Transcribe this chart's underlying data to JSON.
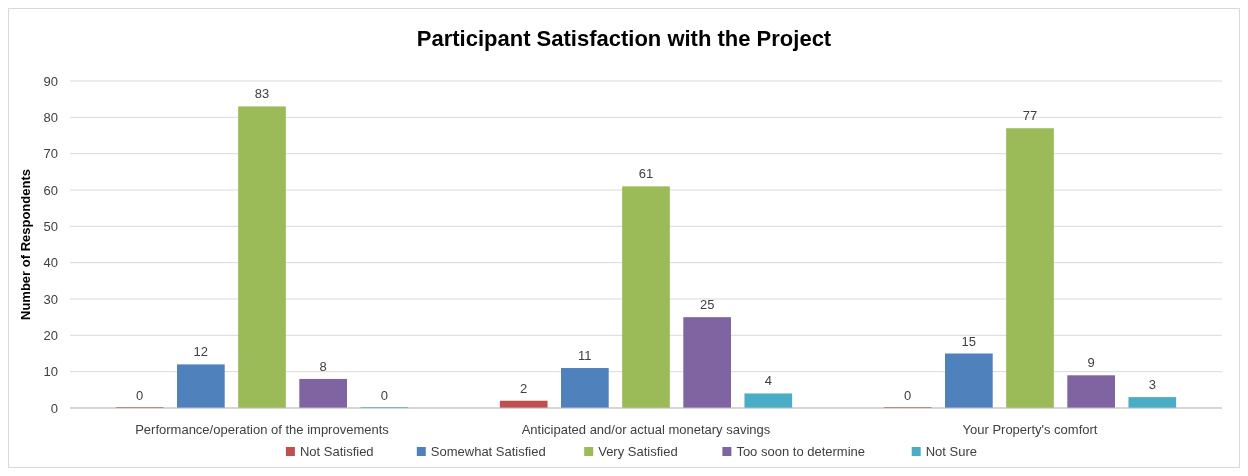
{
  "chart_data": {
    "type": "bar",
    "title": "Participant Satisfaction with the Project",
    "ylabel": "Number of Respondents",
    "categories": [
      "Performance/operation of the improvements",
      "Anticipated and/or actual monetary savings",
      "Your Property's comfort"
    ],
    "series": [
      {
        "name": "Not Satisfied",
        "color": "#c0504d",
        "values": [
          0,
          2,
          0
        ]
      },
      {
        "name": "Somewhat Satisfied",
        "color": "#4f81bd",
        "values": [
          12,
          11,
          15
        ]
      },
      {
        "name": "Very Satisfied",
        "color": "#9bbb59",
        "values": [
          83,
          61,
          77
        ]
      },
      {
        "name": "Too soon to determine",
        "color": "#8064a2",
        "values": [
          8,
          25,
          9
        ]
      },
      {
        "name": "Not Sure",
        "color": "#4bacc6",
        "values": [
          0,
          4,
          3
        ]
      }
    ],
    "ylim": [
      0,
      90
    ],
    "yticks": [
      0,
      10,
      20,
      30,
      40,
      50,
      60,
      70,
      80,
      90
    ],
    "grid": "y",
    "legend": "bottom",
    "data_labels": true
  }
}
